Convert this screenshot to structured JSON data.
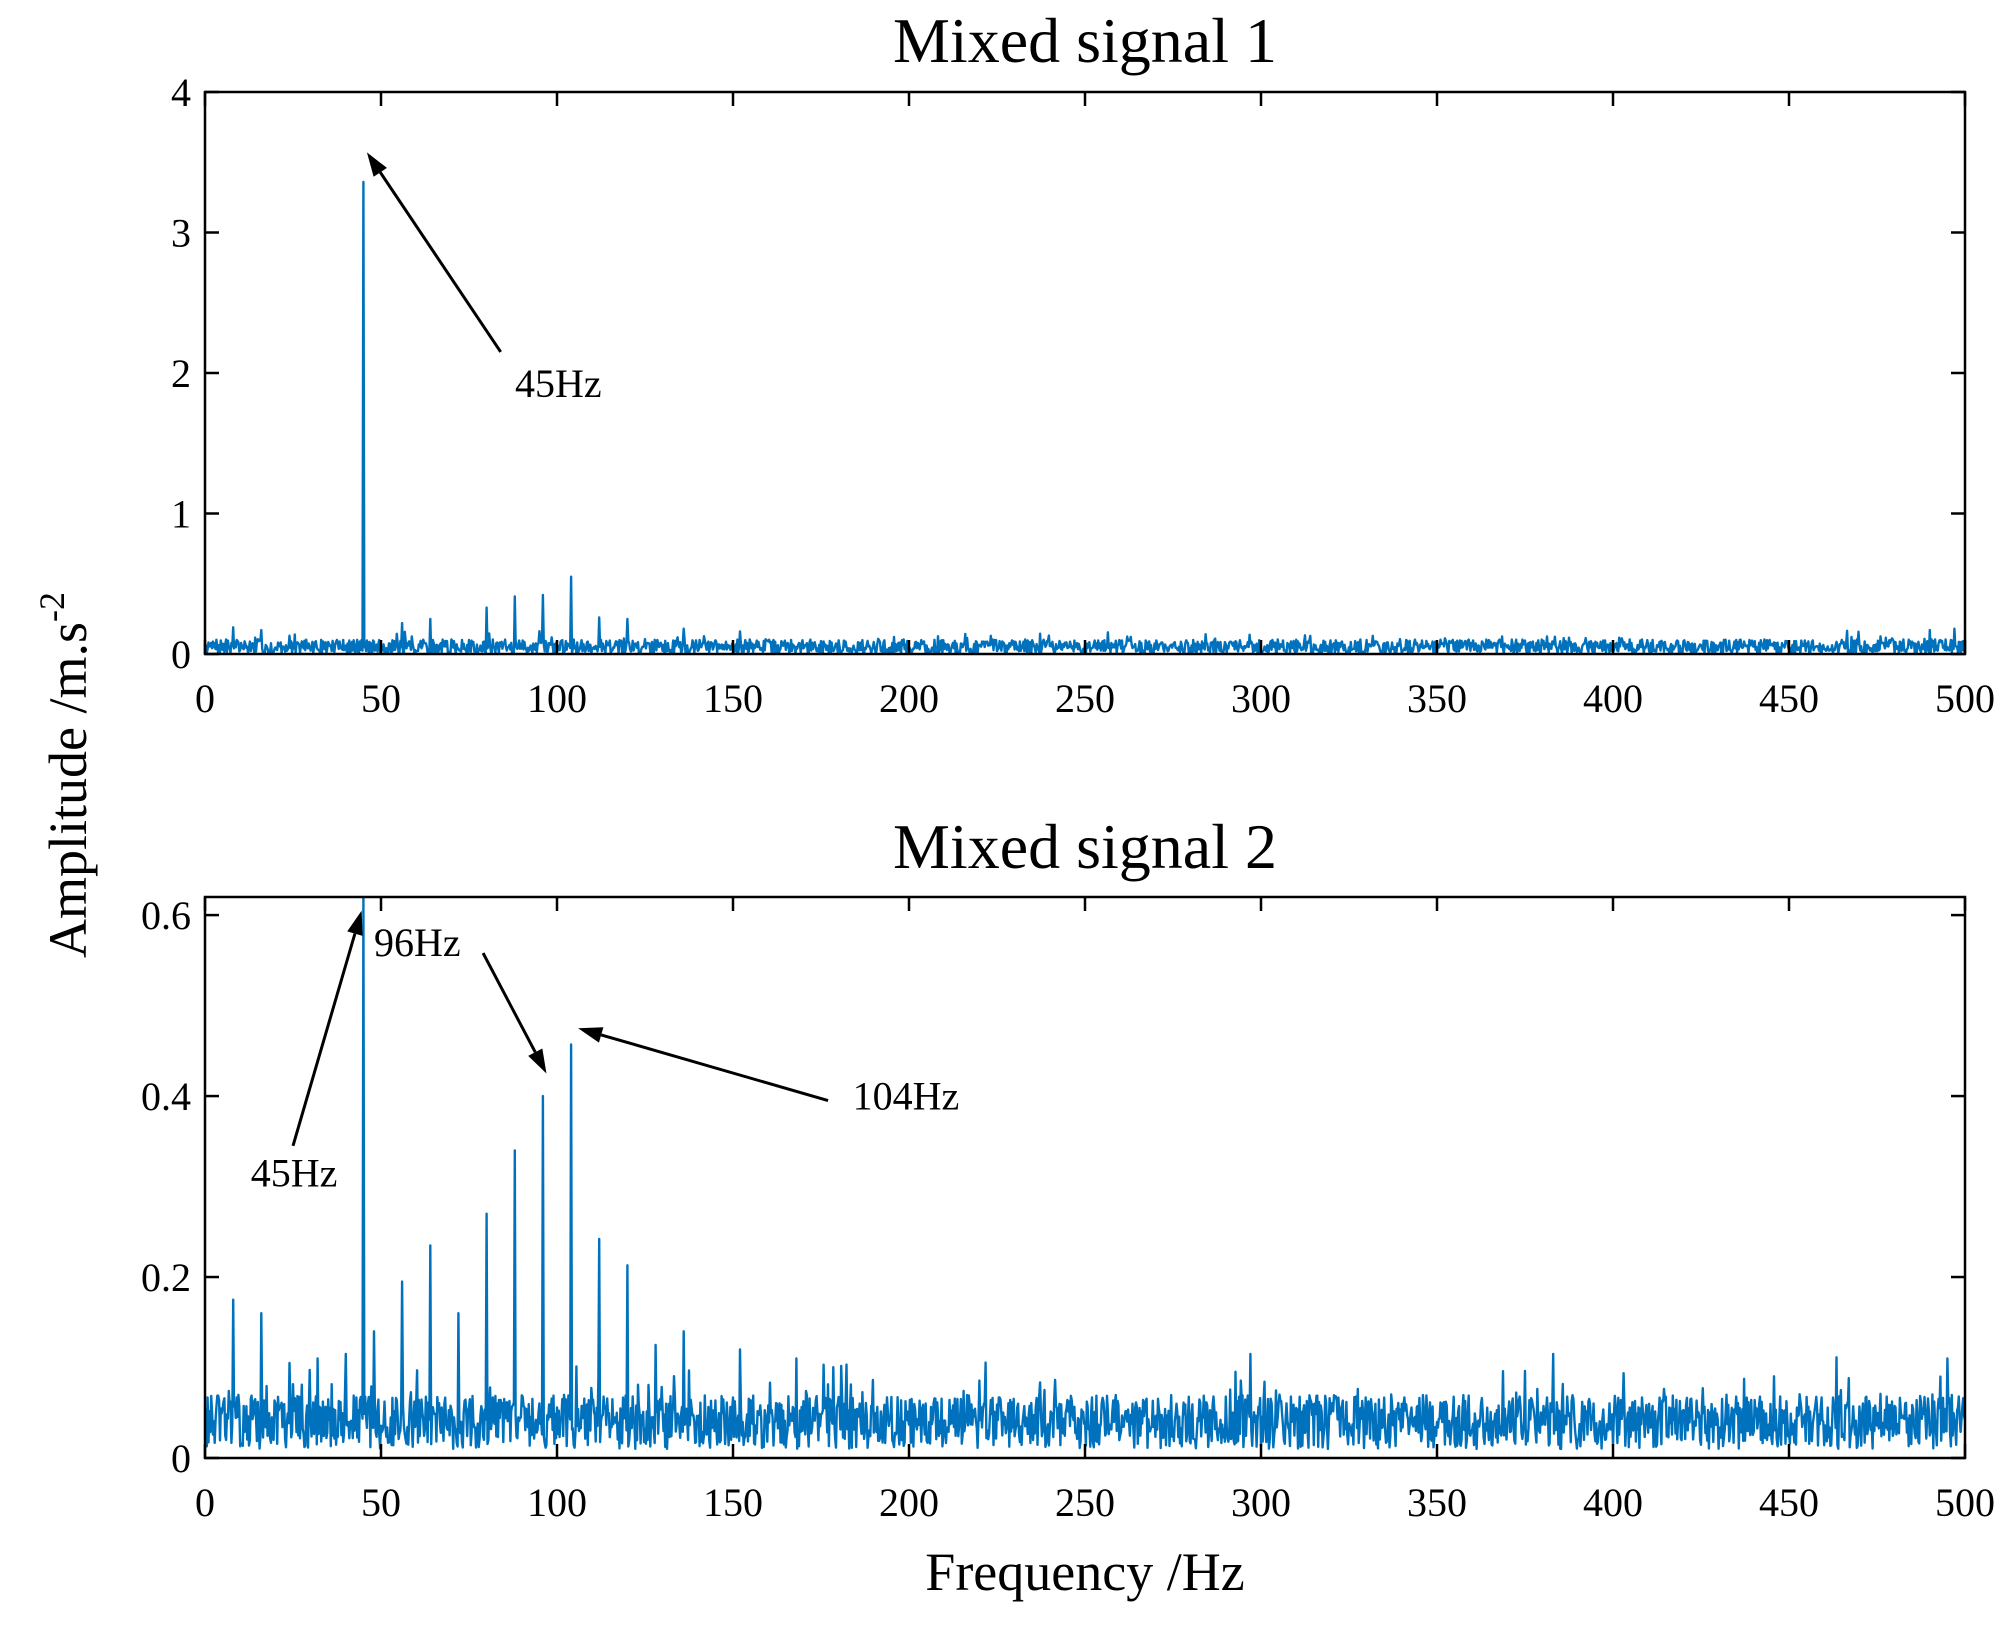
{
  "colors": {
    "series": "#0072BD",
    "axes": "#000000",
    "background": "#FFFFFF"
  },
  "shared_ylabel": "Amplitude /m.s",
  "shared_ylabel_superscript": "-2",
  "chart_data": [
    {
      "type": "line",
      "title": "Mixed signal 1",
      "xlabel": "",
      "ylabel": "Amplitude /m.s-2",
      "xlim": [
        0,
        500
      ],
      "ylim": [
        0,
        4
      ],
      "xticks": [
        0,
        50,
        100,
        150,
        200,
        250,
        300,
        350,
        400,
        450,
        500
      ],
      "xtick_labels": [
        "0",
        "50",
        "100",
        "150",
        "200",
        "250",
        "300",
        "350",
        "400",
        "450",
        "500"
      ],
      "yticks": [
        0,
        1,
        2,
        3,
        4
      ],
      "ytick_labels": [
        "0",
        "1",
        "2",
        "3",
        "4"
      ],
      "grid": false,
      "noise": {
        "baseline": 0.05,
        "amplitude": 0.09,
        "step_hz": 0.25,
        "seed": 7
      },
      "peaks": [
        {
          "x": 8,
          "y": 0.19
        },
        {
          "x": 16,
          "y": 0.17
        },
        {
          "x": 24,
          "y": 0.13
        },
        {
          "x": 45,
          "y": 3.36
        },
        {
          "x": 56,
          "y": 0.22
        },
        {
          "x": 64,
          "y": 0.25
        },
        {
          "x": 80,
          "y": 0.33
        },
        {
          "x": 88,
          "y": 0.41
        },
        {
          "x": 96,
          "y": 0.42
        },
        {
          "x": 104,
          "y": 0.55
        },
        {
          "x": 112,
          "y": 0.26
        },
        {
          "x": 120,
          "y": 0.25
        },
        {
          "x": 136,
          "y": 0.18
        },
        {
          "x": 152,
          "y": 0.16
        },
        {
          "x": 490,
          "y": 0.17
        },
        {
          "x": 497,
          "y": 0.18
        }
      ],
      "annotations": [
        {
          "text": "45Hz",
          "text_x": 45,
          "text_y": 3.36,
          "arrow_from_x": 84,
          "arrow_from_y": 2.15,
          "arrow_to_x": 46,
          "arrow_to_y": 3.57
        }
      ]
    },
    {
      "type": "line",
      "title": "Mixed signal 2",
      "xlabel": "Frequency /Hz",
      "ylabel": "Amplitude /m.s-2",
      "xlim": [
        0,
        500
      ],
      "ylim": [
        0,
        0.62
      ],
      "xticks": [
        0,
        50,
        100,
        150,
        200,
        250,
        300,
        350,
        400,
        450,
        500
      ],
      "xtick_labels": [
        "0",
        "50",
        "100",
        "150",
        "200",
        "250",
        "300",
        "350",
        "400",
        "450",
        "500"
      ],
      "yticks": [
        0,
        0.2,
        0.4,
        0.6
      ],
      "ytick_labels": [
        "0",
        "0.2",
        "0.4",
        "0.6"
      ],
      "grid": false,
      "noise": {
        "baseline": 0.04,
        "amplitude": 0.05,
        "step_hz": 0.25,
        "seed": 13
      },
      "peaks": [
        {
          "x": 8,
          "y": 0.175
        },
        {
          "x": 16,
          "y": 0.16
        },
        {
          "x": 24,
          "y": 0.105
        },
        {
          "x": 32,
          "y": 0.11
        },
        {
          "x": 40,
          "y": 0.115
        },
        {
          "x": 45,
          "y": 0.62
        },
        {
          "x": 48,
          "y": 0.14
        },
        {
          "x": 56,
          "y": 0.195
        },
        {
          "x": 64,
          "y": 0.235
        },
        {
          "x": 72,
          "y": 0.16
        },
        {
          "x": 80,
          "y": 0.27
        },
        {
          "x": 88,
          "y": 0.34
        },
        {
          "x": 96,
          "y": 0.4
        },
        {
          "x": 104,
          "y": 0.457
        },
        {
          "x": 112,
          "y": 0.242
        },
        {
          "x": 120,
          "y": 0.213
        },
        {
          "x": 128,
          "y": 0.125
        },
        {
          "x": 136,
          "y": 0.14
        },
        {
          "x": 152,
          "y": 0.12
        },
        {
          "x": 168,
          "y": 0.11
        },
        {
          "x": 297,
          "y": 0.115
        },
        {
          "x": 383,
          "y": 0.115
        },
        {
          "x": 495,
          "y": 0.11
        }
      ],
      "annotations": [
        {
          "text": "45Hz",
          "text_x": 13,
          "text_y": 0.3,
          "arrow_from_x": 25,
          "arrow_from_y": 0.345,
          "arrow_to_x": 44.5,
          "arrow_to_y": 0.605
        },
        {
          "text": "96Hz",
          "text_x": 48,
          "text_y": 0.555,
          "arrow_from_x": 79,
          "arrow_from_y": 0.558,
          "arrow_to_x": 97,
          "arrow_to_y": 0.425
        },
        {
          "text": "104Hz",
          "text_x": 184,
          "text_y": 0.385,
          "arrow_from_x": 177,
          "arrow_from_y": 0.395,
          "arrow_to_x": 106,
          "arrow_to_y": 0.475
        }
      ]
    }
  ]
}
